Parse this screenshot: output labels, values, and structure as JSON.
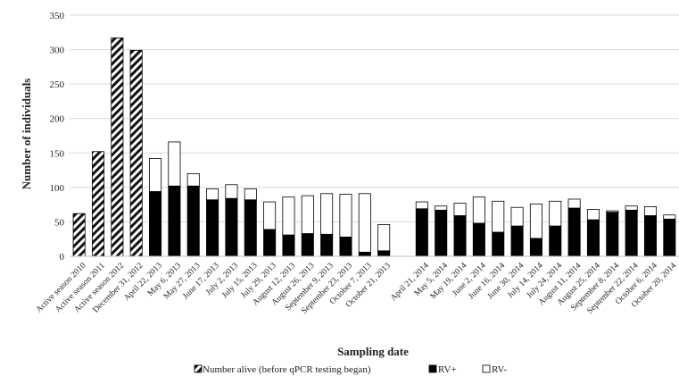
{
  "chart_data": {
    "type": "bar",
    "stacked": true,
    "xlabel": "Sampling date",
    "ylabel": "Number of individuals",
    "ylim": [
      0,
      350
    ],
    "yticks": [
      0,
      50,
      100,
      150,
      200,
      250,
      300,
      350
    ],
    "grid": true,
    "legend_position": "bottom",
    "categories": [
      "Active season 2010",
      "Active season 2011",
      "Active season 2012",
      "December 31, 2012",
      "April 22, 2013",
      "May 6, 2013",
      "May 27, 2013",
      "June 17, 2013",
      "July 2, 2013",
      "July 15, 2013",
      "July 29, 2013",
      "August 12, 2013",
      "August 26, 2013",
      "September 9, 2013",
      "September 23, 2013",
      "October 7, 2013",
      "October 21, 2013",
      "",
      "April 21, 2014",
      "May 5, 2014",
      "May 19, 2014",
      "June 2, 2014",
      "June 16, 2014",
      "June 30, 2014",
      "July 14, 2014",
      "July 24, 2014",
      "August 11, 2014",
      "August 25, 2014",
      "September 8, 2014",
      "September 22, 2014",
      "October 6, 2014",
      "October 20, 2014"
    ],
    "series": [
      {
        "name": "Number alive (before qPCR testing began)",
        "pattern": "hatched",
        "values": [
          62,
          152,
          317,
          299,
          0,
          0,
          0,
          0,
          0,
          0,
          0,
          0,
          0,
          0,
          0,
          0,
          0,
          0,
          0,
          0,
          0,
          0,
          0,
          0,
          0,
          0,
          0,
          0,
          0,
          0,
          0,
          0
        ]
      },
      {
        "name": "RV+",
        "color": "#000000",
        "values": [
          0,
          0,
          0,
          0,
          94,
          102,
          102,
          82,
          84,
          82,
          39,
          31,
          33,
          32,
          28,
          6,
          8,
          0,
          69,
          67,
          59,
          48,
          35,
          44,
          26,
          44,
          70,
          53,
          64,
          67,
          59,
          54
        ]
      },
      {
        "name": "RV-",
        "color": "#ffffff",
        "values": [
          0,
          0,
          0,
          0,
          48,
          64,
          18,
          16,
          20,
          16,
          40,
          55,
          55,
          59,
          62,
          85,
          38,
          0,
          10,
          6,
          18,
          38,
          45,
          27,
          50,
          36,
          13,
          15,
          2,
          6,
          13,
          6
        ]
      }
    ]
  }
}
